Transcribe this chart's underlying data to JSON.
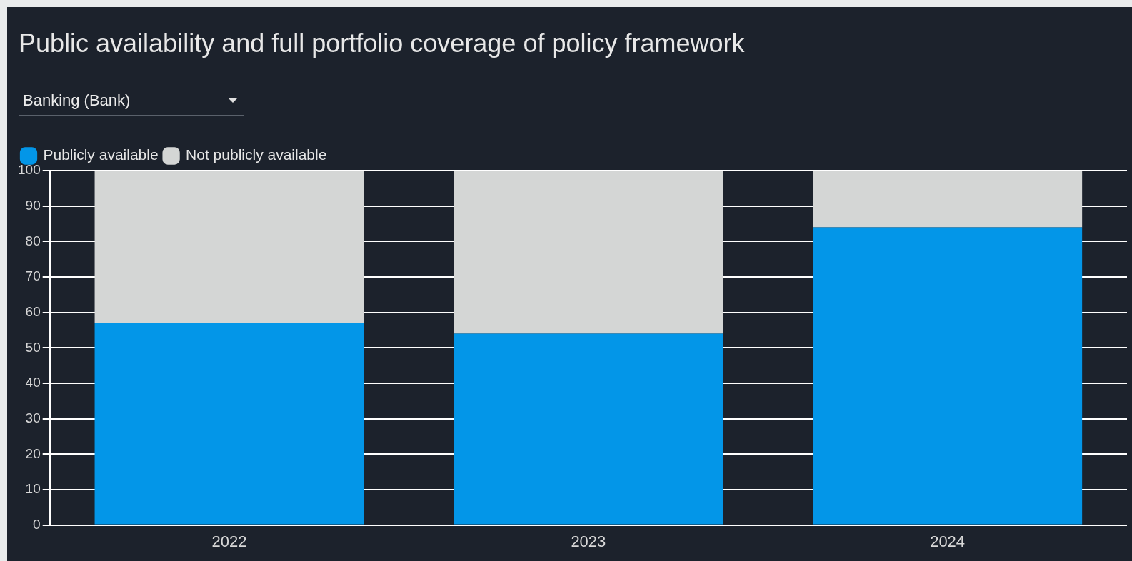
{
  "chart_data": {
    "type": "bar",
    "title": "Public availability and full portfolio coverage of policy framework",
    "subtitle": "Banking (Bank)",
    "categories": [
      "2022",
      "2023",
      "2024"
    ],
    "stacked": true,
    "series": [
      {
        "name": "Publicly available",
        "color": "#0396e8",
        "values": [
          57,
          54,
          84
        ]
      },
      {
        "name": "Not publicly available",
        "color": "#d4d6d5",
        "values": [
          43,
          46,
          16
        ]
      }
    ],
    "ylim": [
      0,
      100
    ],
    "yticks": [
      0,
      10,
      20,
      30,
      40,
      50,
      60,
      70,
      80,
      90,
      100
    ],
    "grid": "y",
    "legend": "top left"
  }
}
